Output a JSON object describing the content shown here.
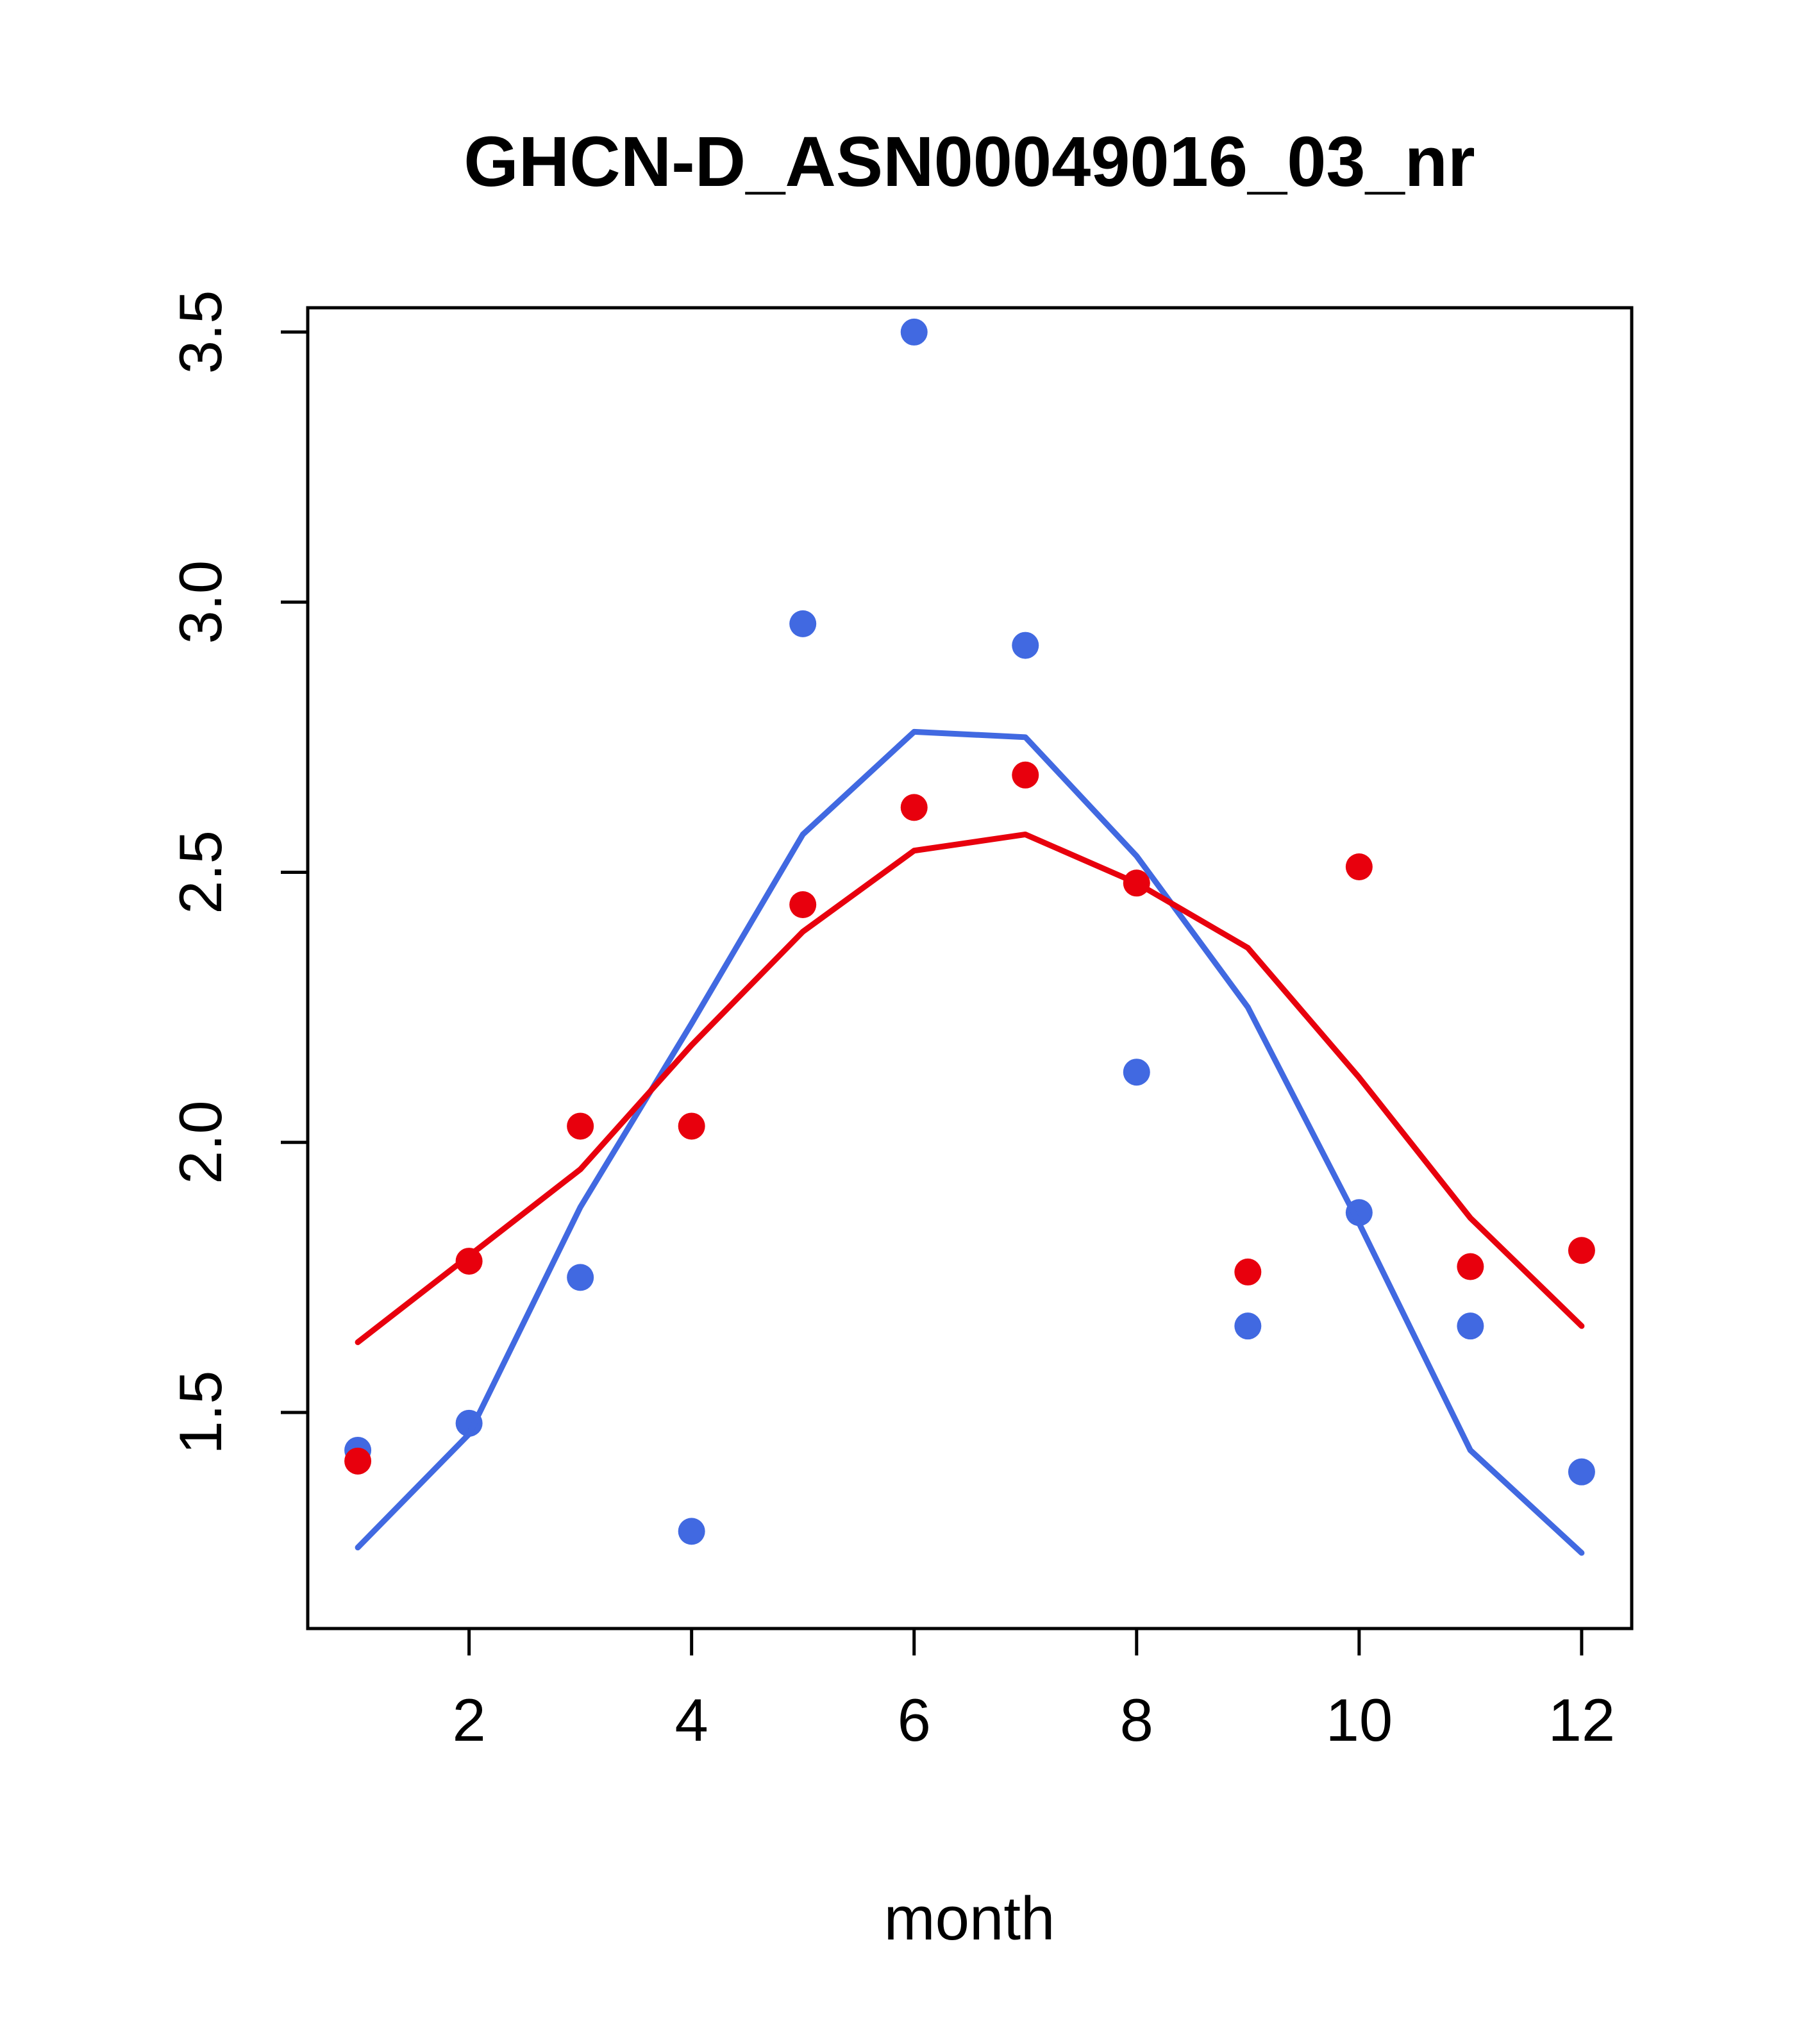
{
  "title": "GHCN-D_ASN00049016_03_nr",
  "chart_data": {
    "type": "scatter",
    "title": "GHCN-D_ASN00049016_03_nr",
    "xlabel": "month",
    "ylabel": "",
    "grid": false,
    "legend": null,
    "x": [
      1,
      2,
      3,
      4,
      5,
      6,
      7,
      8,
      9,
      10,
      11,
      12
    ],
    "xlim": [
      0.55,
      12.45
    ],
    "ylim": [
      1.1,
      3.545
    ],
    "xticks": [
      2,
      4,
      6,
      8,
      10,
      12
    ],
    "xtick_labels": [
      "2",
      "4",
      "6",
      "8",
      "10",
      "12"
    ],
    "yticks": [
      1.5,
      2.0,
      2.5,
      3.0,
      3.5
    ],
    "ytick_labels": [
      "1.5",
      "2.0",
      "2.5",
      "3.0",
      "3.5"
    ],
    "colors": {
      "blue": "#4169E1",
      "red": "#E8000D"
    },
    "series": [
      {
        "name": "blue-points",
        "kind": "points",
        "color": "#4169E1",
        "values": [
          1.43,
          1.48,
          1.75,
          1.28,
          2.96,
          3.5,
          2.92,
          2.13,
          1.66,
          1.87,
          1.66,
          1.39
        ]
      },
      {
        "name": "red-points",
        "kind": "points",
        "color": "#E8000D",
        "values": [
          1.41,
          1.78,
          2.03,
          2.03,
          2.44,
          2.62,
          2.68,
          2.48,
          1.76,
          2.51,
          1.77,
          1.8
        ]
      },
      {
        "name": "blue-smooth-line",
        "kind": "line",
        "color": "#4169E1",
        "values": [
          1.25,
          1.46,
          1.88,
          2.22,
          2.57,
          2.76,
          2.75,
          2.53,
          2.25,
          1.85,
          1.43,
          1.24
        ]
      },
      {
        "name": "red-smooth-line",
        "kind": "line",
        "color": "#E8000D",
        "values": [
          1.63,
          1.79,
          1.95,
          2.18,
          2.39,
          2.54,
          2.57,
          2.48,
          2.36,
          2.12,
          1.86,
          1.66
        ]
      }
    ]
  }
}
